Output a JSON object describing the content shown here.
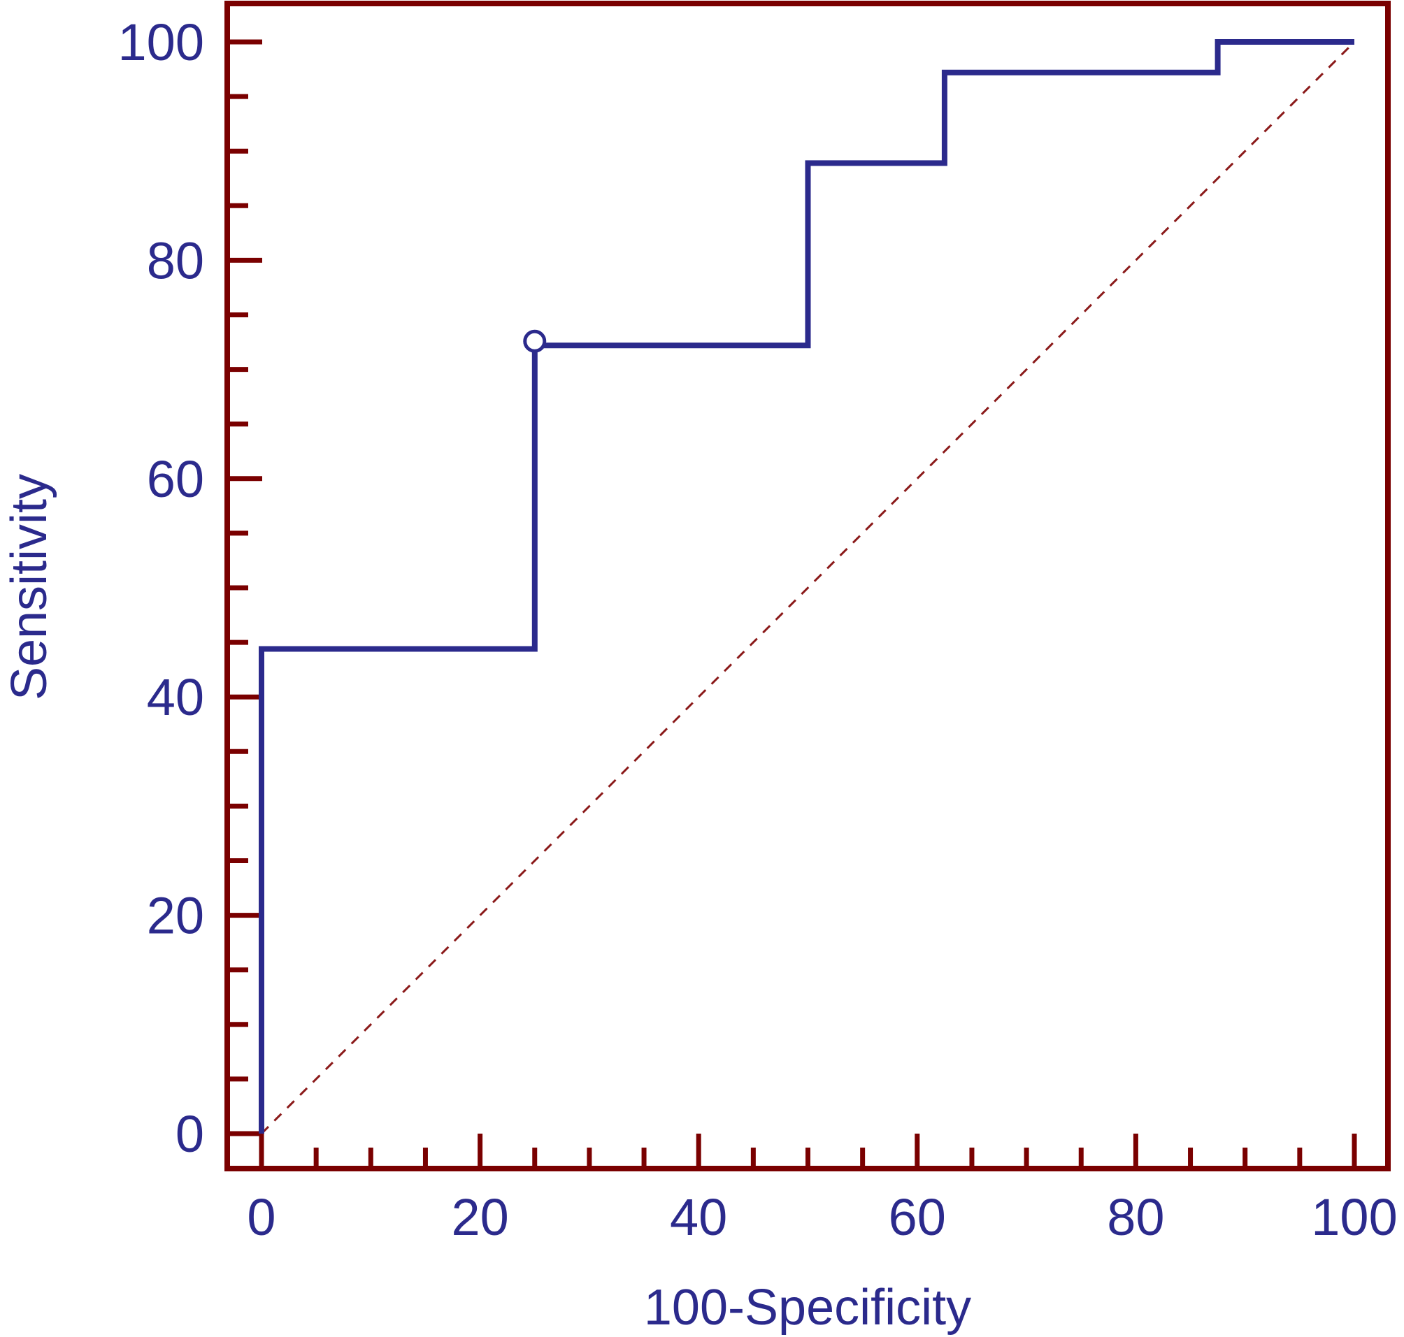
{
  "chart_data": {
    "type": "line",
    "xlabel": "100-Specificity",
    "ylabel": "Sensitivity",
    "xlim": [
      0,
      100
    ],
    "ylim": [
      0,
      100
    ],
    "x_ticks": [
      "0",
      "20",
      "40",
      "60",
      "80",
      "100"
    ],
    "y_ticks": [
      "0",
      "20",
      "40",
      "60",
      "80",
      "100"
    ],
    "grid": false,
    "series": [
      {
        "color": "#2b2a8c",
        "step": true,
        "x": [
          0,
          0,
          25,
          25,
          50,
          50,
          62.5,
          62.5,
          87.5,
          87.5,
          100
        ],
        "y": [
          0,
          44.4,
          44.4,
          72.2,
          72.2,
          88.9,
          88.9,
          97.2,
          97.2,
          100,
          100
        ]
      }
    ],
    "reference_line": {
      "x": [
        0,
        100
      ],
      "y": [
        0,
        100
      ],
      "style": "dashed",
      "color": "#8b1a1a"
    },
    "marker": {
      "x": 25,
      "y": 72.2,
      "shape": "open-circle"
    },
    "frame_color": "#7a0000",
    "text_color": "#2b2a8c"
  }
}
